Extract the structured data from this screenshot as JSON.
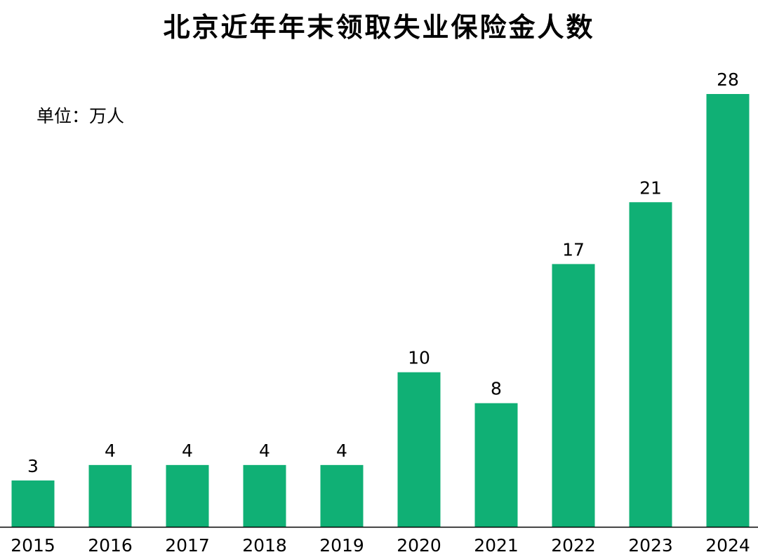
{
  "chart_data": {
    "type": "bar",
    "title": "北京近年年末领取失业保险金人数",
    "unit_label": "单位：万人",
    "categories": [
      "2015",
      "2016",
      "2017",
      "2018",
      "2019",
      "2020",
      "2021",
      "2022",
      "2023",
      "2024"
    ],
    "values": [
      3,
      4,
      4,
      4,
      4,
      10,
      8,
      17,
      21,
      28
    ],
    "xlabel": "",
    "ylabel": "",
    "ylim": [
      0,
      28
    ],
    "grid": false,
    "legend": "none",
    "bar_color": "#10b075",
    "axis_color": "#000000"
  }
}
